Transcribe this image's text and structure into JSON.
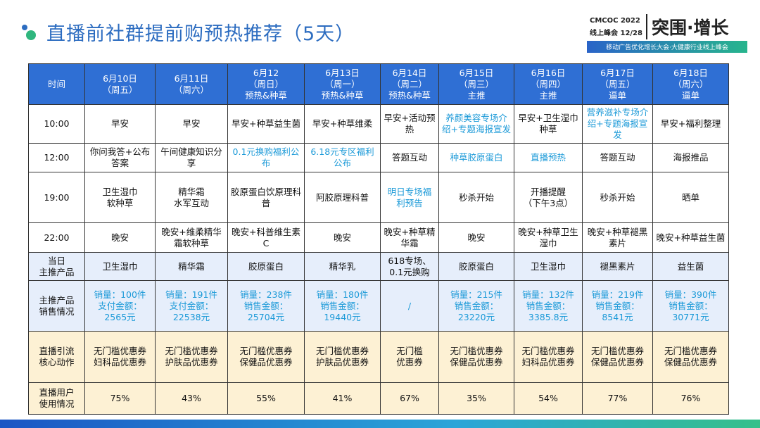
{
  "header": {
    "title": "直播前社群提前购预热推荐（5天）",
    "logo": {
      "event": "CMCOC 2022",
      "date": "线上峰会 12/28",
      "slogan": "突围·增长",
      "subtitle": "移动广告优化增长大会·大健康行业线上峰会"
    }
  },
  "table": {
    "header": [
      "时间",
      "6月10日\n（周五）",
      "6月11日\n（周六）",
      "6月12\n（周日）\n预热&种草",
      "6月13日\n（周一）\n预热&种草",
      "6月14日\n（周二）\n预热&种草",
      "6月15日\n（周三）\n主推",
      "6月16日\n（周四）\n主推",
      "6月17日\n（周五）\n逼单",
      "6月18日\n（周六）\n逼单"
    ],
    "rows": [
      [
        "10:00",
        "早安",
        "早安",
        "早安+种草益生菌",
        "早安+种草维柔",
        "早安+活动预热",
        "养颜美容专场介绍+专题海报宣发",
        "早安+卫生湿巾种草",
        "营养滋补专场介绍+专题海报宣发",
        "早安+福利整理"
      ],
      [
        "12:00",
        "你问我答+公布答案",
        "午间健康知识分享",
        "0.1元换购福利公布",
        "6.18元专区福利公布",
        "答题互动",
        "种草胶原蛋白",
        "直播预热",
        "答题互动",
        "海报推品"
      ],
      [
        "19:00",
        "卫生湿巾\n软种草",
        "精华霜\n水军互动",
        "胶原蛋白饮原理科普",
        "阿胶原理科普",
        "明日专场福利预告",
        "秒杀开始",
        "开播提醒\n（下午3点）",
        "秒杀开始",
        "晒单"
      ],
      [
        "22:00",
        "晚安",
        "晚安+维柔精华霜软种草",
        "晚安+科普维生素C",
        "晚安",
        "晚安+种草精华霜",
        "晚安",
        "晚安+种草卫生湿巾",
        "晚安+种草褪黑素片",
        "晚安+种草益生菌"
      ],
      [
        "当日\n主推产品",
        "卫生湿巾",
        "精华霜",
        "胶原蛋白",
        "精华乳",
        "618专场、0.1元换购",
        "胶原蛋白",
        "卫生湿巾",
        "褪黑素片",
        "益生菌"
      ],
      [
        "主推产品\n销售情况",
        "销量：100件\n支付金额：2565元",
        "销量：191件\n支付金额：22538元",
        "销量：238件\n销售金额：25704元",
        "销量：180件\n销售金额：19440元",
        "/",
        "销量：215件\n销售金额：23220元",
        "销量：132件\n销售金额：3385.8元",
        "销量：219件\n销售金额：8541元",
        "销量：390件\n销售金额：30771元"
      ],
      [
        "直播引流\n核心动作",
        "无门槛优惠券\n妇科品优惠券",
        "无门槛优惠券\n护肤品优惠券",
        "无门槛优惠券\n保健品优惠券",
        "无门槛优惠券\n护肤品优惠券",
        "无门槛\n优惠券",
        "无门槛优惠券\n保健品优惠券",
        "无门槛优惠券\n妇科品优惠券",
        "无门槛优惠券\n保健品优惠券",
        "无门槛优惠券\n保健品优惠券"
      ],
      [
        "直播用户\n使用情况",
        "75%",
        "43%",
        "55%",
        "41%",
        "67%",
        "35%",
        "54%",
        "77%",
        "76%"
      ]
    ]
  }
}
